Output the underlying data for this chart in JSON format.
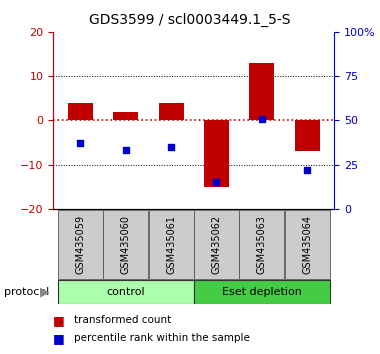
{
  "title": "GDS3599 / scl0003449.1_5-S",
  "categories": [
    "GSM435059",
    "GSM435060",
    "GSM435061",
    "GSM435062",
    "GSM435063",
    "GSM435064"
  ],
  "red_values": [
    4.0,
    2.0,
    4.0,
    -15.0,
    13.0,
    -7.0
  ],
  "blue_pct": [
    37.0,
    33.0,
    35.0,
    15.0,
    51.0,
    22.0
  ],
  "ylim_left": [
    -20,
    20
  ],
  "ylim_right": [
    0,
    100
  ],
  "red_color": "#c00000",
  "blue_color": "#0000cc",
  "dashed_line_color": "#cc0000",
  "bar_width": 0.55,
  "control_color": "#aaffaa",
  "depletion_color": "#44cc44",
  "gray_box_color": "#cccccc",
  "protocol_label": "protocol",
  "legend_red": "transformed count",
  "legend_blue": "percentile rank within the sample",
  "title_fontsize": 10,
  "tick_fontsize": 8,
  "label_fontsize": 7,
  "legend_fontsize": 7.5
}
